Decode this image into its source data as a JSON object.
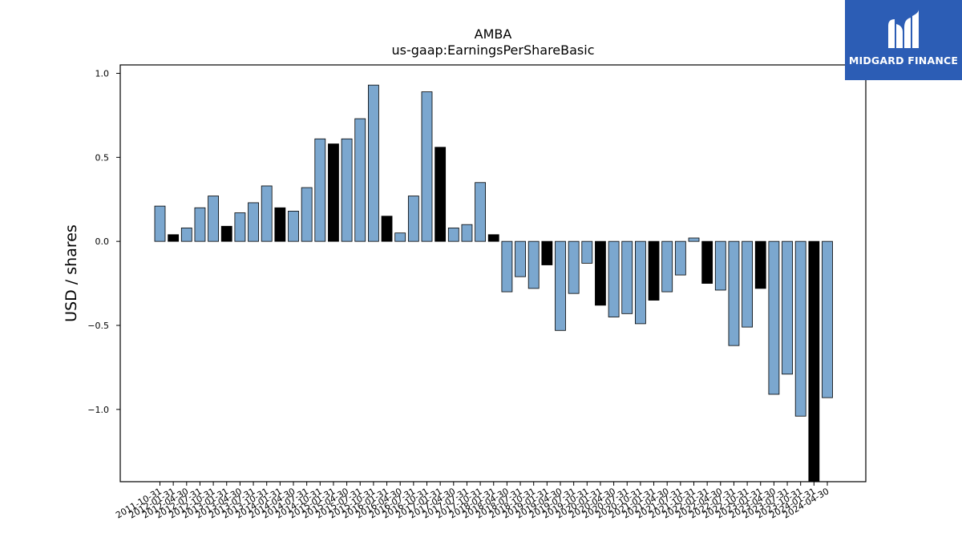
{
  "chart_data": {
    "type": "bar",
    "title": "AMBA",
    "subtitle": "us-gaap:EarningsPerShareBasic",
    "xlabel": "",
    "ylabel": "USD / shares",
    "ylim": [
      -1.43,
      1.05
    ],
    "yticks": [
      1.0,
      0.5,
      0.0,
      -0.5,
      -1.0
    ],
    "ytick_labels": [
      "1.0",
      "0.5",
      "0.0",
      "−0.5",
      "−1.0"
    ],
    "grid": false,
    "colors": {
      "quarterly": "#7ba7cf",
      "annual": "#000000",
      "edge": "#000000"
    },
    "bars": [
      {
        "label": "2011-10-31",
        "value": 0.21,
        "kind": "quarterly"
      },
      {
        "label": "2012-01-31",
        "value": 0.04,
        "kind": "annual"
      },
      {
        "label": "2012-04-30",
        "value": 0.08,
        "kind": "quarterly"
      },
      {
        "label": "2012-07-31",
        "value": 0.2,
        "kind": "quarterly"
      },
      {
        "label": "2012-10-31",
        "value": 0.27,
        "kind": "quarterly"
      },
      {
        "label": "2013-01-31",
        "value": 0.09,
        "kind": "annual"
      },
      {
        "label": "2013-04-30",
        "value": 0.17,
        "kind": "quarterly"
      },
      {
        "label": "2013-07-31",
        "value": 0.23,
        "kind": "quarterly"
      },
      {
        "label": "2013-10-31",
        "value": 0.33,
        "kind": "quarterly"
      },
      {
        "label": "2014-01-31",
        "value": 0.2,
        "kind": "annual"
      },
      {
        "label": "2014-04-30",
        "value": 0.18,
        "kind": "quarterly"
      },
      {
        "label": "2014-07-31",
        "value": 0.32,
        "kind": "quarterly"
      },
      {
        "label": "2014-10-31",
        "value": 0.61,
        "kind": "quarterly"
      },
      {
        "label": "2015-01-31",
        "value": 0.58,
        "kind": "annual"
      },
      {
        "label": "2015-04-30",
        "value": 0.61,
        "kind": "quarterly"
      },
      {
        "label": "2015-07-31",
        "value": 0.73,
        "kind": "quarterly"
      },
      {
        "label": "2015-10-31",
        "value": 0.93,
        "kind": "quarterly"
      },
      {
        "label": "2016-01-31",
        "value": 0.15,
        "kind": "annual"
      },
      {
        "label": "2016-04-30",
        "value": 0.05,
        "kind": "quarterly"
      },
      {
        "label": "2016-07-31",
        "value": 0.27,
        "kind": "quarterly"
      },
      {
        "label": "2016-10-31",
        "value": 0.89,
        "kind": "quarterly"
      },
      {
        "label": "2017-01-31",
        "value": 0.56,
        "kind": "annual"
      },
      {
        "label": "2017-04-30",
        "value": 0.08,
        "kind": "quarterly"
      },
      {
        "label": "2017-07-31",
        "value": 0.1,
        "kind": "quarterly"
      },
      {
        "label": "2017-10-31",
        "value": 0.35,
        "kind": "quarterly"
      },
      {
        "label": "2018-01-31",
        "value": 0.04,
        "kind": "annual"
      },
      {
        "label": "2018-04-30",
        "value": -0.3,
        "kind": "quarterly"
      },
      {
        "label": "2018-07-31",
        "value": -0.21,
        "kind": "quarterly"
      },
      {
        "label": "2018-10-31",
        "value": -0.28,
        "kind": "quarterly"
      },
      {
        "label": "2019-01-31",
        "value": -0.14,
        "kind": "annual"
      },
      {
        "label": "2019-04-30",
        "value": -0.53,
        "kind": "quarterly"
      },
      {
        "label": "2019-07-31",
        "value": -0.31,
        "kind": "quarterly"
      },
      {
        "label": "2019-10-31",
        "value": -0.13,
        "kind": "quarterly"
      },
      {
        "label": "2020-01-31",
        "value": -0.38,
        "kind": "annual"
      },
      {
        "label": "2020-04-30",
        "value": -0.45,
        "kind": "quarterly"
      },
      {
        "label": "2020-07-31",
        "value": -0.43,
        "kind": "quarterly"
      },
      {
        "label": "2020-10-31",
        "value": -0.49,
        "kind": "quarterly"
      },
      {
        "label": "2021-01-31",
        "value": -0.35,
        "kind": "annual"
      },
      {
        "label": "2021-04-30",
        "value": -0.3,
        "kind": "quarterly"
      },
      {
        "label": "2021-07-31",
        "value": -0.2,
        "kind": "quarterly"
      },
      {
        "label": "2021-10-31",
        "value": 0.02,
        "kind": "quarterly"
      },
      {
        "label": "2022-01-31",
        "value": -0.25,
        "kind": "annual"
      },
      {
        "label": "2022-04-30",
        "value": -0.29,
        "kind": "quarterly"
      },
      {
        "label": "2022-07-31",
        "value": -0.62,
        "kind": "quarterly"
      },
      {
        "label": "2022-10-31",
        "value": -0.51,
        "kind": "quarterly"
      },
      {
        "label": "2023-01-31",
        "value": -0.28,
        "kind": "annual"
      },
      {
        "label": "2023-04-30",
        "value": -0.91,
        "kind": "quarterly"
      },
      {
        "label": "2023-07-31",
        "value": -0.79,
        "kind": "quarterly"
      },
      {
        "label": "2023-10-31",
        "value": -1.04,
        "kind": "quarterly"
      },
      {
        "label": "2024-01-31",
        "value": -1.43,
        "kind": "annual"
      },
      {
        "label": "2024-04-30",
        "value": -0.93,
        "kind": "quarterly"
      }
    ]
  },
  "logo": {
    "text": "MIDGARD FINANCE",
    "icon": "midgard-logo-icon",
    "background": "#2c5db5"
  }
}
